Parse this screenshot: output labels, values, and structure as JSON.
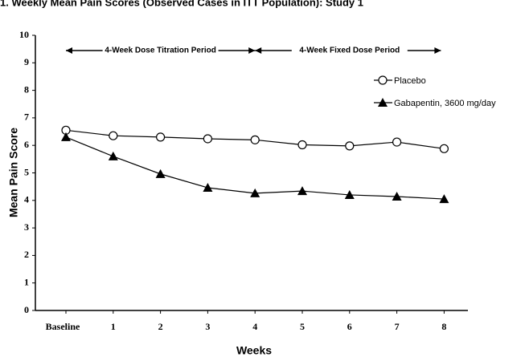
{
  "chart_data": {
    "type": "line",
    "title": "1. Weekly Mean Pain Scores (Observed Cases in ITT Population): Study 1",
    "xlabel": "Weeks",
    "ylabel": "Mean Pain Score",
    "categories": [
      "Baseline",
      "1",
      "2",
      "3",
      "4",
      "5",
      "6",
      "7",
      "8"
    ],
    "series": [
      {
        "name": "Placebo",
        "color": "#000000",
        "marker": "circle-open",
        "values": [
          6.55,
          6.35,
          6.3,
          6.24,
          6.2,
          6.02,
          5.98,
          6.12,
          5.88
        ]
      },
      {
        "name": "Gabapentin, 3600 mg/day",
        "color": "#000000",
        "marker": "triangle",
        "values": [
          6.3,
          5.6,
          4.96,
          4.46,
          4.26,
          4.34,
          4.2,
          4.14,
          4.05
        ]
      }
    ],
    "ylim": [
      0,
      10
    ],
    "yticks": [
      0,
      1,
      2,
      3,
      4,
      5,
      6,
      7,
      8,
      9,
      10
    ],
    "annotations": [
      "4-Week Dose Titration Period",
      "4-Week Fixed Dose Period"
    ],
    "legend": "upper right",
    "grid": false
  }
}
